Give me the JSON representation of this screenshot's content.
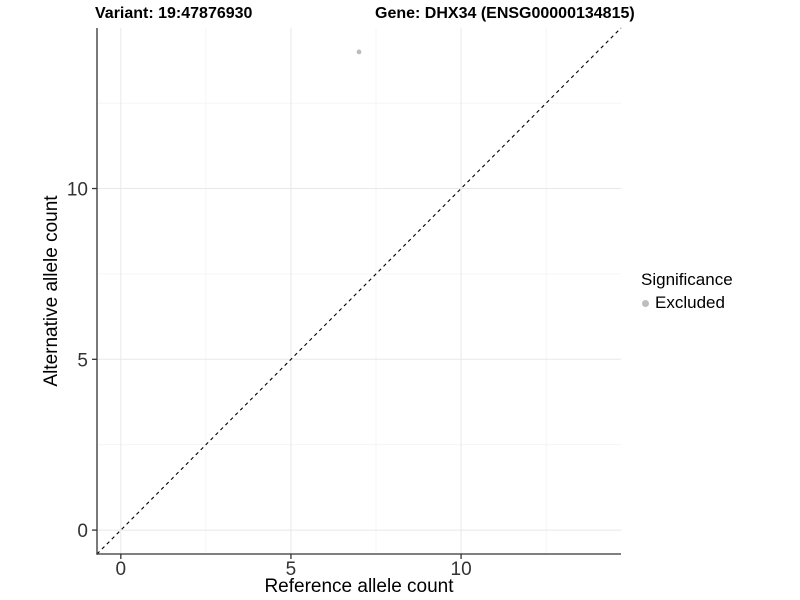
{
  "chart_data": {
    "type": "scatter",
    "titles": {
      "left": "Variant: 19:47876930",
      "right": "Gene: DHX34 (ENSG00000134815)"
    },
    "xlabel": "Reference allele count",
    "ylabel": "Alternative allele count",
    "xlim": [
      -0.7,
      14.7
    ],
    "ylim": [
      -0.7,
      14.7
    ],
    "x_ticks": {
      "major": [
        0,
        5,
        10
      ],
      "minor": [
        2.5,
        7.5,
        12.5
      ]
    },
    "y_ticks": {
      "major": [
        0,
        5,
        10
      ],
      "minor": [
        2.5,
        7.5,
        12.5
      ]
    },
    "grid": "major+minor",
    "reference_line": {
      "type": "identity",
      "style": "dashed",
      "color": "#000000"
    },
    "series": [
      {
        "name": "Excluded",
        "color": "#bdbdbd",
        "points": [
          {
            "x": 7,
            "y": 14
          }
        ]
      }
    ],
    "legend": {
      "title": "Significance",
      "position": "right",
      "entries": [
        {
          "label": "Excluded",
          "color": "#bdbdbd"
        }
      ]
    },
    "style": {
      "axis_line_color": "#333333",
      "tick_label_color": "#333333",
      "grid_major_color": "#e8e8e8",
      "grid_minor_color": "#f4f4f4",
      "background": "#ffffff"
    }
  }
}
